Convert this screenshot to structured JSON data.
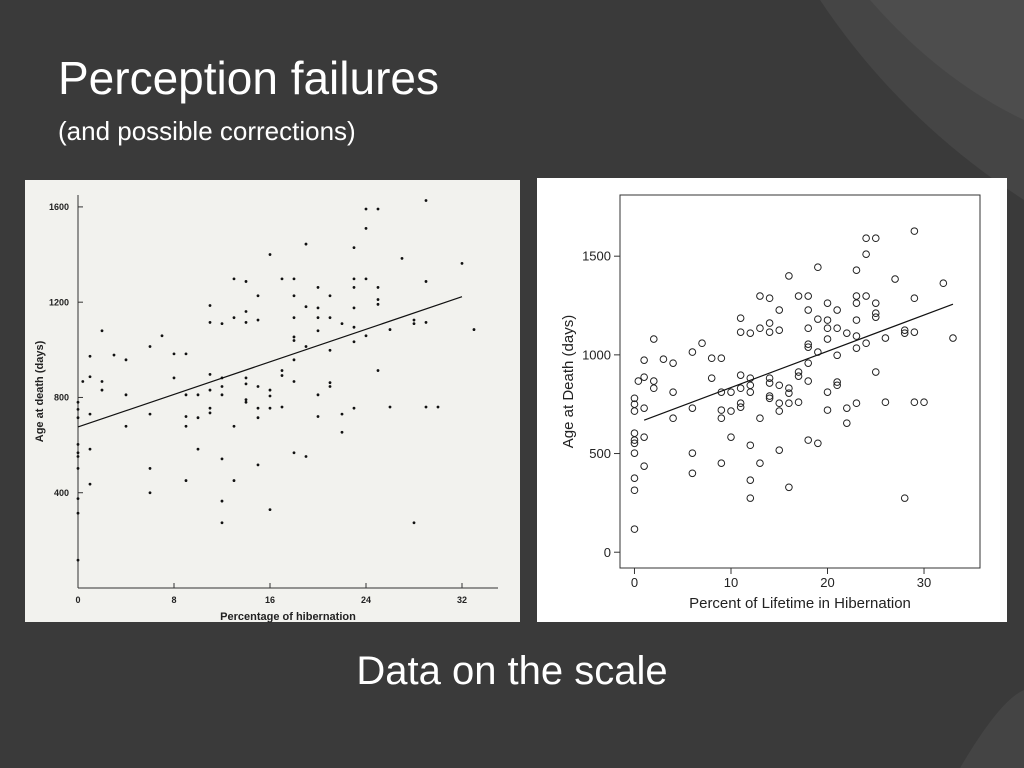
{
  "slide": {
    "title": "Perception failures",
    "subtitle": "(and possible corrections)",
    "caption": "Data on the scale"
  },
  "chart_data": [
    {
      "type": "scatter",
      "marker": "dot",
      "frame": false,
      "background": "#f2f2ee",
      "xlabel": "Percentage of hibernation",
      "ylabel": "Age at death (days)",
      "xlim": [
        0,
        35
      ],
      "ylim": [
        0,
        1650
      ],
      "xticks": [
        0,
        8,
        16,
        24,
        32
      ],
      "yticks": [
        400,
        800,
        1200,
        1600
      ],
      "x": [
        0,
        0,
        0,
        0,
        0,
        0,
        0,
        0,
        0,
        0,
        0.4,
        1,
        1,
        1,
        1,
        1,
        2,
        2,
        2,
        3,
        4,
        4,
        4,
        6,
        6,
        6,
        6,
        7,
        8,
        8,
        9,
        9,
        9,
        9,
        9,
        10,
        10,
        10,
        11,
        11,
        11,
        11,
        11,
        11,
        12,
        12,
        12,
        12,
        12,
        12,
        12,
        13,
        13,
        13,
        13,
        14,
        14,
        14,
        14,
        14,
        14,
        14,
        15,
        15,
        15,
        15,
        15,
        15,
        16,
        16,
        16,
        16,
        16,
        17,
        17,
        17,
        17,
        18,
        18,
        18,
        18,
        18,
        18,
        18,
        18,
        19,
        19,
        19,
        19,
        20,
        20,
        20,
        20,
        20,
        20,
        21,
        21,
        21,
        21,
        21,
        22,
        22,
        22,
        23,
        23,
        23,
        23,
        23,
        23,
        23,
        24,
        24,
        24,
        24,
        25,
        25,
        25,
        25,
        25,
        26,
        26,
        27,
        28,
        28,
        28,
        29,
        29,
        29,
        29,
        30,
        32,
        33
      ],
      "values": [
        117,
        314,
        375,
        502,
        568,
        603,
        552,
        715,
        750,
        780,
        867,
        973,
        887,
        730,
        583,
        436,
        1080,
        867,
        831,
        978,
        958,
        811,
        679,
        1014,
        730,
        502,
        400,
        1059,
        882,
        983,
        983,
        811,
        720,
        679,
        451,
        811,
        715,
        583,
        1186,
        1115,
        897,
        831,
        755,
        735,
        1110,
        882,
        846,
        811,
        542,
        365,
        274,
        1298,
        1135,
        679,
        451,
        1287,
        1161,
        1115,
        882,
        857,
        791,
        780,
        1227,
        1125,
        846,
        755,
        715,
        517,
        1400,
        831,
        806,
        755,
        329,
        913,
        892,
        760,
        1298,
        1298,
        1227,
        1135,
        1054,
        1039,
        958,
        867,
        568,
        1444,
        1181,
        1014,
        552,
        1262,
        1176,
        1135,
        1080,
        811,
        720,
        1227,
        1135,
        998,
        862,
        846,
        1110,
        730,
        654,
        1429,
        1298,
        1262,
        1176,
        1095,
        1034,
        755,
        1591,
        1510,
        1298,
        1059,
        1591,
        1262,
        1211,
        1191,
        913,
        1085,
        760,
        1384,
        1125,
        1110,
        274,
        1627,
        1287,
        1115,
        760,
        760,
        1363,
        1085
      ],
      "fit_line": {
        "x": [
          0,
          32
        ],
        "y": [
          676,
          1223
        ]
      }
    },
    {
      "type": "scatter",
      "marker": "circle",
      "frame": true,
      "background": "#ffffff",
      "xlabel": "Percent of Lifetime in Hibernation",
      "ylabel": "Age at Death (days)",
      "xlim": [
        -1.5,
        35.8
      ],
      "ylim": [
        -80,
        1810
      ],
      "xticks": [
        0,
        10,
        20,
        30
      ],
      "yticks": [
        0,
        500,
        1000,
        1500
      ],
      "x": [
        0,
        0,
        0,
        0,
        0,
        0,
        0,
        0,
        0,
        0,
        0.4,
        1,
        1,
        1,
        1,
        1,
        2,
        2,
        2,
        3,
        4,
        4,
        4,
        6,
        6,
        6,
        6,
        7,
        8,
        8,
        9,
        9,
        9,
        9,
        9,
        10,
        10,
        10,
        11,
        11,
        11,
        11,
        11,
        11,
        12,
        12,
        12,
        12,
        12,
        12,
        12,
        13,
        13,
        13,
        13,
        14,
        14,
        14,
        14,
        14,
        14,
        14,
        15,
        15,
        15,
        15,
        15,
        15,
        16,
        16,
        16,
        16,
        16,
        17,
        17,
        17,
        17,
        18,
        18,
        18,
        18,
        18,
        18,
        18,
        18,
        19,
        19,
        19,
        19,
        20,
        20,
        20,
        20,
        20,
        20,
        21,
        21,
        21,
        21,
        21,
        22,
        22,
        22,
        23,
        23,
        23,
        23,
        23,
        23,
        23,
        24,
        24,
        24,
        24,
        25,
        25,
        25,
        25,
        25,
        26,
        26,
        27,
        28,
        28,
        28,
        29,
        29,
        29,
        29,
        30,
        32,
        33
      ],
      "values": [
        117,
        314,
        375,
        502,
        568,
        603,
        552,
        715,
        750,
        780,
        867,
        973,
        887,
        730,
        583,
        436,
        1080,
        867,
        831,
        978,
        958,
        811,
        679,
        1014,
        730,
        502,
        400,
        1059,
        882,
        983,
        983,
        811,
        720,
        679,
        451,
        811,
        715,
        583,
        1186,
        1115,
        897,
        831,
        755,
        735,
        1110,
        882,
        846,
        811,
        542,
        365,
        274,
        1298,
        1135,
        679,
        451,
        1287,
        1161,
        1115,
        882,
        857,
        791,
        780,
        1227,
        1125,
        846,
        755,
        715,
        517,
        1400,
        831,
        806,
        755,
        329,
        913,
        892,
        760,
        1298,
        1298,
        1227,
        1135,
        1054,
        1039,
        958,
        867,
        568,
        1444,
        1181,
        1014,
        552,
        1262,
        1176,
        1135,
        1080,
        811,
        720,
        1227,
        1135,
        998,
        862,
        846,
        1110,
        730,
        654,
        1429,
        1298,
        1262,
        1176,
        1095,
        1034,
        755,
        1591,
        1510,
        1298,
        1059,
        1591,
        1262,
        1211,
        1191,
        913,
        1085,
        760,
        1384,
        1125,
        1110,
        274,
        1627,
        1287,
        1115,
        760,
        760,
        1363,
        1085
      ],
      "fit_line": {
        "x": [
          1,
          33
        ],
        "y": [
          669,
          1257
        ]
      }
    }
  ]
}
